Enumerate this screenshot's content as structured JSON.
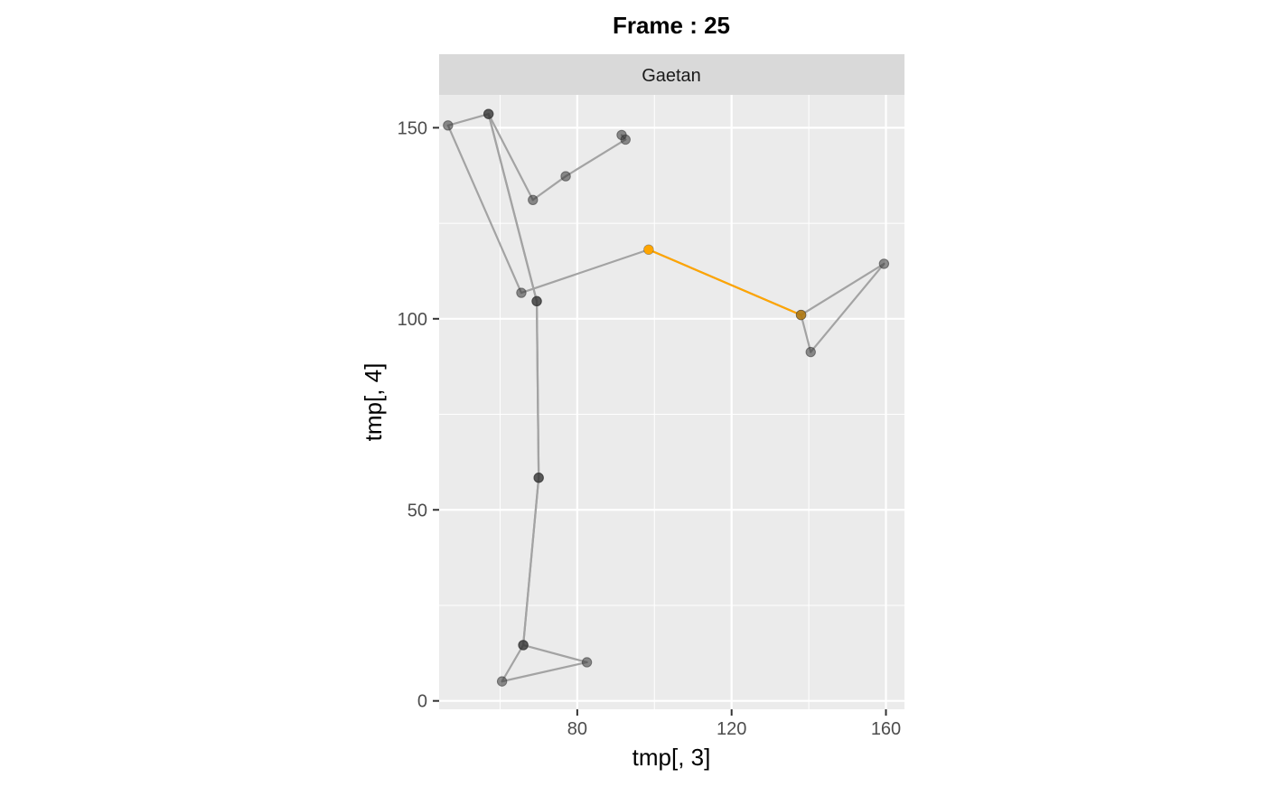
{
  "chart_data": {
    "type": "line",
    "title": "Frame : 25",
    "facet_label": "Gaetan",
    "xlabel": "tmp[, 3]",
    "ylabel": "tmp[, 4]",
    "xlim": [
      44.2,
      164.8
    ],
    "ylim": [
      -2.2,
      158.6
    ],
    "x_ticks": [
      80,
      120,
      160
    ],
    "y_ticks": [
      0,
      50,
      100,
      150
    ],
    "grid": true,
    "path": [
      {
        "x": 91.5,
        "y": 148.1
      },
      {
        "x": 92.5,
        "y": 146.9
      },
      {
        "x": 77,
        "y": 137.3
      },
      {
        "x": 68.5,
        "y": 131.1
      },
      {
        "x": 57,
        "y": 153.6
      },
      {
        "x": 69.5,
        "y": 104.6
      },
      {
        "x": 70,
        "y": 58.4
      },
      {
        "x": 66,
        "y": 14.6
      },
      {
        "x": 82.5,
        "y": 10.1
      },
      {
        "x": 60.5,
        "y": 5.1
      },
      {
        "x": 66,
        "y": 14.6
      },
      {
        "x": 70,
        "y": 58.4
      },
      {
        "x": 69.5,
        "y": 104.6
      },
      {
        "x": 57,
        "y": 153.6
      },
      {
        "x": 46.5,
        "y": 150.6
      },
      {
        "x": 65.5,
        "y": 106.8
      },
      {
        "x": 98.5,
        "y": 118.1
      },
      {
        "x": 138,
        "y": 101.0
      },
      {
        "x": 140.5,
        "y": 91.3
      },
      {
        "x": 159.5,
        "y": 114.4
      },
      {
        "x": 138,
        "y": 101.0
      }
    ],
    "highlight_segment": {
      "from": {
        "x": 98.5,
        "y": 118.1
      },
      "to": {
        "x": 138,
        "y": 101.0
      }
    },
    "colors": {
      "path": "#a3a3a3",
      "point": "#333333",
      "highlight": "#ffa500",
      "panel": "#ebebeb",
      "strip": "#d9d9d9",
      "grid": "#ffffff"
    }
  }
}
